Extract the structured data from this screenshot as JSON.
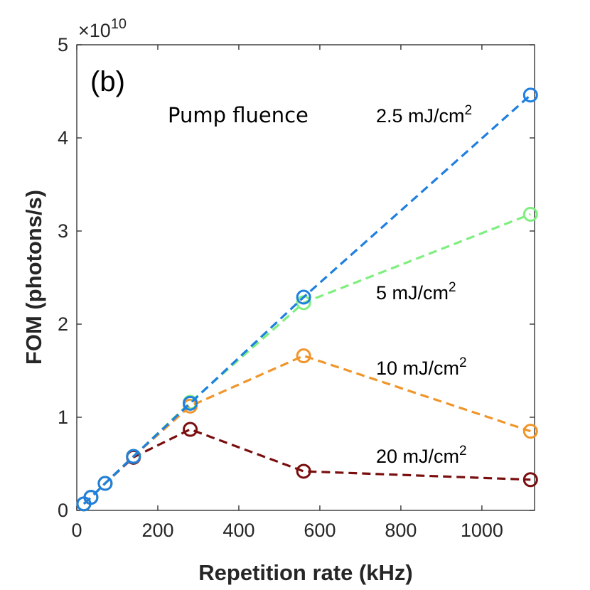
{
  "chart_data": {
    "type": "line",
    "panel_label": "(b)",
    "xlabel": "Repetition rate (kHz)",
    "ylabel": "FOM (photons/s)",
    "y_multiplier": "×10",
    "y_multiplier_exponent": "10",
    "xlim": [
      0,
      1130
    ],
    "ylim": [
      0,
      5
    ],
    "xticks": [
      0,
      200,
      400,
      600,
      800,
      1000
    ],
    "yticks": [
      0,
      1,
      2,
      3,
      4,
      5
    ],
    "grid": false,
    "legend_title": "Pump fluence",
    "series": [
      {
        "name": "2.5 mJ/cm",
        "superscript": "2",
        "color": "#1f7fe0",
        "x": [
          17.5,
          35,
          70,
          140,
          280,
          560,
          1120
        ],
        "y": [
          0.07,
          0.14,
          0.29,
          0.58,
          1.15,
          2.29,
          4.46
        ]
      },
      {
        "name": "5 mJ/cm",
        "superscript": "2",
        "color": "#7eef7e",
        "x": [
          17.5,
          35,
          70,
          140,
          280,
          560,
          1120
        ],
        "y": [
          0.07,
          0.14,
          0.29,
          0.58,
          1.16,
          2.23,
          3.18
        ]
      },
      {
        "name": "10 mJ/cm",
        "superscript": "2",
        "color": "#f0952a",
        "x": [
          17.5,
          35,
          70,
          140,
          280,
          560,
          1120
        ],
        "y": [
          0.07,
          0.14,
          0.29,
          0.58,
          1.12,
          1.66,
          0.85
        ]
      },
      {
        "name": "20 mJ/cm",
        "superscript": "2",
        "color": "#7a0e0e",
        "x": [
          17.5,
          35,
          70,
          140,
          280,
          560,
          1120
        ],
        "y": [
          0.07,
          0.14,
          0.29,
          0.57,
          0.87,
          0.42,
          0.33
        ]
      }
    ]
  }
}
